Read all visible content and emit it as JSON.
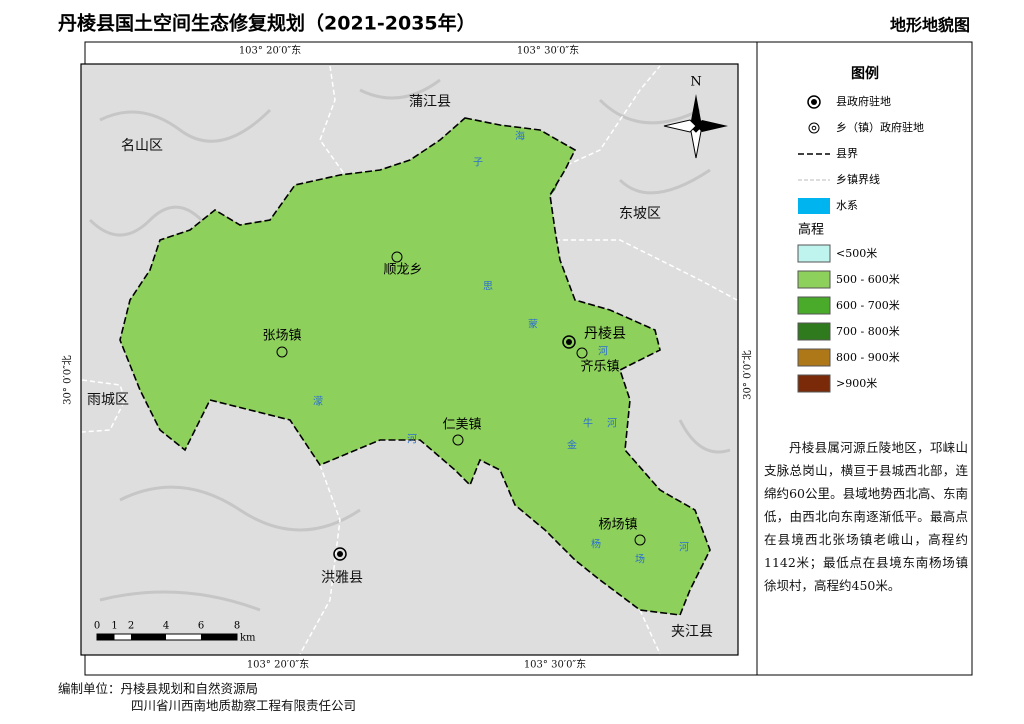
{
  "header": {
    "title": "丹棱县国土空间生态修复规划（2021-2035年）",
    "map_name": "地形地貌图"
  },
  "coordinates": {
    "top": [
      "103° 20′0″东",
      "103° 30′0″东"
    ],
    "bottom": [
      "103° 20′0″东",
      "103° 30′0″东"
    ],
    "left": "30° 0′0″北",
    "right": "30° 0′0″北"
  },
  "neighbors": [
    "蒲江县",
    "名山区",
    "东坡区",
    "雨城区",
    "洪雅县",
    "夹江县"
  ],
  "county_seat": "丹棱县",
  "towns": [
    "顺龙乡",
    "张场镇",
    "齐乐镇",
    "仁美镇",
    "杨场镇"
  ],
  "rivers": [
    [
      "海",
      "子"
    ],
    [
      "思",
      "蒙",
      "河"
    ],
    [
      "濛",
      "河"
    ],
    [
      "金",
      "牛",
      "河"
    ],
    [
      "杨",
      "场",
      "河"
    ]
  ],
  "north": "N",
  "legend": {
    "title": "图例",
    "items": [
      "县政府驻地",
      "乡（镇）政府驻地",
      "县界",
      "乡镇界线",
      "水系"
    ],
    "water_color": "#00b4f0",
    "elevation_title": "高程",
    "elevation": [
      {
        "label": "<500米",
        "color": "#bff3ee"
      },
      {
        "label": "500 - 600米",
        "color": "#8ed05c"
      },
      {
        "label": "600 - 700米",
        "color": "#4aab2a"
      },
      {
        "label": "700 - 800米",
        "color": "#2f7a1c"
      },
      {
        "label": "800 - 900米",
        "color": "#ae7818"
      },
      {
        "label": ">900米",
        "color": "#7a2a08"
      }
    ]
  },
  "description": "丹棱县属河源丘陵地区，邛崃山支脉总岗山，横亘于县城西北部，连绵约60公里。县域地势西北高、东南低，由西北向东南逐渐低平。最高点在县境西北张场镇老峨山，高程约1142米；最低点在县境东南杨场镇徐坝村，高程约450米。",
  "scale_bar": {
    "labels": [
      "0",
      "1",
      "2",
      "4",
      "6",
      "8"
    ],
    "unit": "km"
  },
  "footer": {
    "org_label": "编制单位：丹棱县规划和自然资源局",
    "org2": "四川省川西南地质勘察工程有限责任公司"
  }
}
